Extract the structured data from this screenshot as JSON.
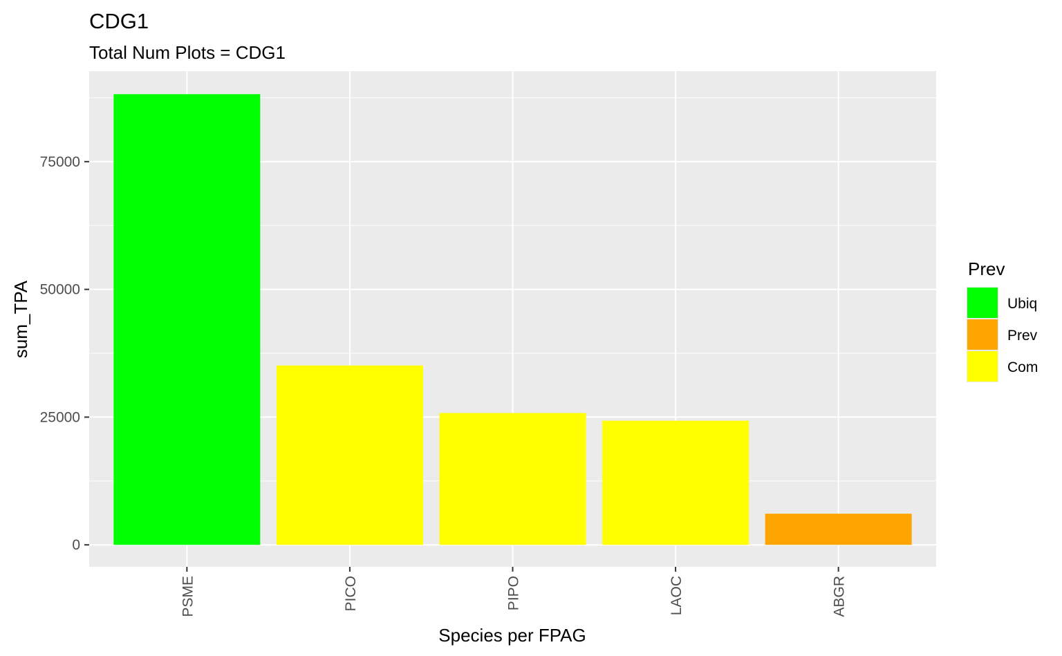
{
  "chart_data": {
    "type": "bar",
    "title": "CDG1",
    "subtitle": "Total Num Plots = CDG1",
    "xlabel": "Species per FPAG",
    "ylabel": "sum_TPA",
    "categories": [
      "PSME",
      "PICO",
      "PIPO",
      "LAOC",
      "ABGR"
    ],
    "values": [
      88200,
      35100,
      25800,
      24300,
      6100
    ],
    "bar_groups": [
      "Ubiq",
      "Com",
      "Com",
      "Com",
      "Prev"
    ],
    "ylim": [
      -4300,
      92700
    ],
    "yticks": [
      0,
      25000,
      50000,
      75000
    ],
    "ytick_labels": [
      "0",
      "25000",
      "50000",
      "75000"
    ],
    "grid": true,
    "panel_background": "#ebebeb",
    "grid_color": "#ffffff",
    "legend": {
      "title": "Prev",
      "placement": "right",
      "items": [
        {
          "label": "Ubiq",
          "color": "#00ff00"
        },
        {
          "label": "Prev",
          "color": "#ffa500"
        },
        {
          "label": "Com",
          "color": "#ffff00"
        }
      ]
    }
  }
}
